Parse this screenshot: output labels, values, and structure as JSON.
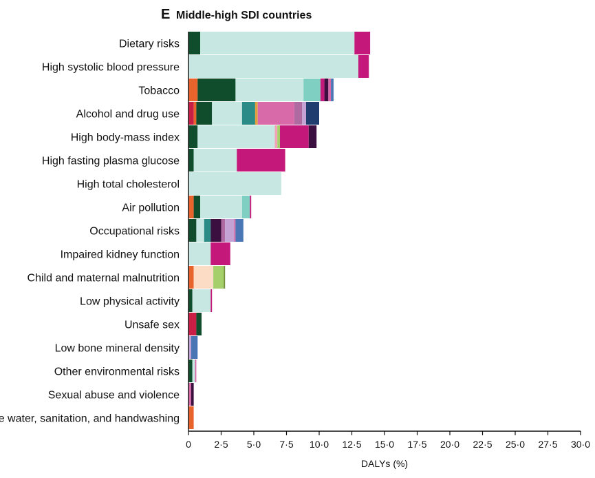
{
  "chart_data": {
    "type": "bar",
    "orientation": "horizontal",
    "stacked": true,
    "panel_letter": "E",
    "title": "Middle-high SDI countries",
    "xlabel": "DALYs (%)",
    "ylabel": "",
    "xlim": [
      0,
      30
    ],
    "x_tick_labels": [
      "0",
      "2·5",
      "5·0",
      "7·5",
      "10·0",
      "12·5",
      "15·0",
      "17·5",
      "20·0",
      "22·5",
      "25·0",
      "27·5",
      "30·0"
    ],
    "grid": false,
    "legend": "none",
    "categories": [
      "Dietary risks",
      "High systolic blood pressure",
      "Tobacco",
      "Alcohol and drug use",
      "High body-mass index",
      "High fasting plasma glucose",
      "High total cholesterol",
      "Air pollution",
      "Occupational risks",
      "Impaired kidney function",
      "Child and maternal malnutrition",
      "Low physical activity",
      "Unsafe sex",
      "Low bone mineral density",
      "Other environmental risks",
      "Sexual abuse and violence",
      "Unsafe water, sanitation, and handwashing"
    ],
    "segments": [
      [
        {
          "value": 0.9,
          "color": "#0f4d2c"
        },
        {
          "value": 11.8,
          "color": "#c7e8e2"
        },
        {
          "value": 1.2,
          "color": "#c4197b"
        }
      ],
      [
        {
          "value": 13.0,
          "color": "#c7e8e2"
        },
        {
          "value": 0.8,
          "color": "#c4197b"
        }
      ],
      [
        {
          "value": 0.7,
          "color": "#e8642c"
        },
        {
          "value": 2.9,
          "color": "#0f4d2c"
        },
        {
          "value": 5.2,
          "color": "#c7e8e2"
        },
        {
          "value": 1.3,
          "color": "#7fcfc3"
        },
        {
          "value": 0.3,
          "color": "#c4197b"
        },
        {
          "value": 0.3,
          "color": "#3b0f3f"
        },
        {
          "value": 0.2,
          "color": "#d96aa9"
        },
        {
          "value": 0.2,
          "color": "#4a76b6"
        }
      ],
      [
        {
          "value": 0.4,
          "color": "#c91f46"
        },
        {
          "value": 0.2,
          "color": "#e8642c"
        },
        {
          "value": 1.2,
          "color": "#0f4d2c"
        },
        {
          "value": 2.3,
          "color": "#c7e8e2"
        },
        {
          "value": 1.0,
          "color": "#2a8b87"
        },
        {
          "value": 0.2,
          "color": "#e0a040"
        },
        {
          "value": 2.8,
          "color": "#d96aa9"
        },
        {
          "value": 0.6,
          "color": "#b06aa2"
        },
        {
          "value": 0.3,
          "color": "#c4a3d4"
        },
        {
          "value": 1.0,
          "color": "#1f3d6e"
        }
      ],
      [
        {
          "value": 0.7,
          "color": "#0f4d2c"
        },
        {
          "value": 5.9,
          "color": "#c7e8e2"
        },
        {
          "value": 0.2,
          "color": "#f3a3b8"
        },
        {
          "value": 0.2,
          "color": "#a4cf6a"
        },
        {
          "value": 2.2,
          "color": "#c4197b"
        },
        {
          "value": 0.6,
          "color": "#3b0f3f"
        }
      ],
      [
        {
          "value": 0.4,
          "color": "#0f4d2c"
        },
        {
          "value": 3.3,
          "color": "#c7e8e2"
        },
        {
          "value": 3.7,
          "color": "#c4197b"
        }
      ],
      [
        {
          "value": 7.1,
          "color": "#c7e8e2"
        }
      ],
      [
        {
          "value": 0.4,
          "color": "#e8642c"
        },
        {
          "value": 0.5,
          "color": "#0f4d2c"
        },
        {
          "value": 3.2,
          "color": "#c7e8e2"
        },
        {
          "value": 0.6,
          "color": "#7fcfc3"
        },
        {
          "value": 0.1,
          "color": "#c4197b"
        }
      ],
      [
        {
          "value": 0.6,
          "color": "#0f4d2c"
        },
        {
          "value": 0.6,
          "color": "#c7e8e2"
        },
        {
          "value": 0.5,
          "color": "#2a8b87"
        },
        {
          "value": 0.8,
          "color": "#3b0f3f"
        },
        {
          "value": 0.3,
          "color": "#b06aa2"
        },
        {
          "value": 0.7,
          "color": "#c4a3d4"
        },
        {
          "value": 0.1,
          "color": "#d96aa9"
        },
        {
          "value": 0.6,
          "color": "#4a76b6"
        }
      ],
      [
        {
          "value": 1.7,
          "color": "#c7e8e2"
        },
        {
          "value": 1.5,
          "color": "#c4197b"
        }
      ],
      [
        {
          "value": 0.4,
          "color": "#e8642c"
        },
        {
          "value": 1.5,
          "color": "#fcdcc4"
        },
        {
          "value": 0.8,
          "color": "#a4cf6a"
        },
        {
          "value": 0.1,
          "color": "#6f8f3a"
        }
      ],
      [
        {
          "value": 0.3,
          "color": "#0f4d2c"
        },
        {
          "value": 1.4,
          "color": "#c7e8e2"
        },
        {
          "value": 0.1,
          "color": "#c4197b"
        }
      ],
      [
        {
          "value": 0.6,
          "color": "#c91f46"
        },
        {
          "value": 0.4,
          "color": "#0f4d2c"
        }
      ],
      [
        {
          "value": 0.2,
          "color": "#c4a3d4"
        },
        {
          "value": 0.5,
          "color": "#4a76b6"
        }
      ],
      [
        {
          "value": 0.3,
          "color": "#0f4d2c"
        },
        {
          "value": 0.2,
          "color": "#c7e8e2"
        },
        {
          "value": 0.1,
          "color": "#d96aa9"
        }
      ],
      [
        {
          "value": 0.2,
          "color": "#d96aa9"
        },
        {
          "value": 0.2,
          "color": "#3b0f3f"
        }
      ],
      [
        {
          "value": 0.4,
          "color": "#e8642c"
        }
      ]
    ]
  }
}
